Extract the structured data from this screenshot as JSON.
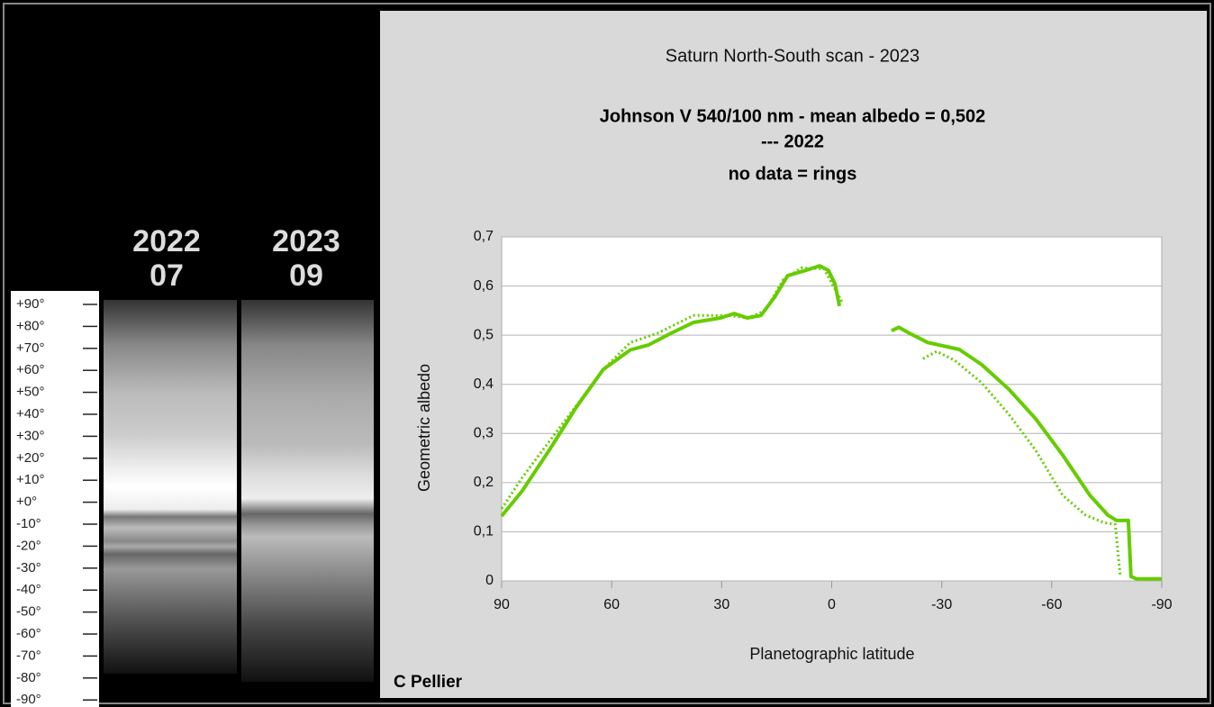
{
  "left_panel": {
    "strip_labels": [
      [
        "2022",
        "07"
      ],
      [
        "2023",
        "09"
      ]
    ],
    "scale": [
      "+90°",
      "+80°",
      "+70°",
      "+60°",
      "+50°",
      "+40°",
      "+30°",
      "+20°",
      "+10°",
      "+0°",
      "-10°",
      "-20°",
      "-30°",
      "-40°",
      "-50°",
      "-60°",
      "-70°",
      "-80°",
      "-90°"
    ]
  },
  "chart_data": {
    "type": "line",
    "title": "Saturn North-South scan - 2023",
    "subtitle": [
      "Johnson V 540/100 nm - mean albedo = 0,502",
      "--- 2022",
      "no data = rings"
    ],
    "xlabel": "Planetographic latitude",
    "ylabel": "Geometric albedo",
    "credit": "C Pellier",
    "xlim": [
      90,
      -90
    ],
    "xticks": [
      90,
      60,
      30,
      0,
      -30,
      -60,
      -90
    ],
    "ylim": [
      0,
      0.7
    ],
    "yticks": [
      0,
      {
        "value": 0.1,
        "label": "0,1"
      },
      {
        "value": 0.2,
        "label": "0,2"
      },
      {
        "value": 0.3,
        "label": "0,3"
      },
      {
        "value": 0.4,
        "label": "0,4"
      },
      {
        "value": 0.5,
        "label": "0,5"
      },
      {
        "value": 0.6,
        "label": "0,6"
      },
      {
        "value": 0.7,
        "label": "0,7"
      }
    ],
    "grid": true,
    "series": [
      {
        "color": "#66cc00",
        "style": "solid",
        "x": [
          90,
          84.4,
          77,
          69.6,
          62.3,
          54.9,
          50,
          43.8,
          37.7,
          30.3,
          26.6,
          23,
          19.3,
          15.6,
          12,
          7,
          3.3,
          0.9,
          -0.9,
          -2.1,
          null,
          -16.3,
          -18.3,
          -21.2,
          -26.2,
          -34.8,
          -40.9,
          -48.3,
          -55.6,
          -63,
          -70.4,
          -75.3,
          -77.7,
          -80.9,
          -81.6,
          -83.1,
          -90
        ],
        "values": [
          0.132,
          0.183,
          0.266,
          0.354,
          0.43,
          0.47,
          0.48,
          0.504,
          0.526,
          0.535,
          0.544,
          0.535,
          0.54,
          0.577,
          0.621,
          0.632,
          0.641,
          0.632,
          0.604,
          0.559,
          null,
          0.509,
          0.516,
          0.504,
          0.485,
          0.471,
          0.44,
          0.39,
          0.33,
          0.256,
          0.174,
          0.134,
          0.123,
          0.123,
          0.009,
          0.004,
          0.004
        ]
      },
      {
        "color": "#66cc00",
        "style": "dotted",
        "x": [
          90,
          84.4,
          77,
          69.6,
          62.3,
          54.9,
          47.5,
          37.7,
          27.9,
          23,
          18.1,
          13.2,
          8.2,
          2.1,
          -2.8,
          null,
          -24.9,
          -28.6,
          -33.5,
          -40.9,
          -48.3,
          -55.6,
          -63,
          -69.2,
          -74.1,
          -77.3,
          -78.7
        ],
        "values": [
          0.147,
          0.21,
          0.284,
          0.357,
          0.43,
          0.485,
          0.504,
          0.54,
          0.54,
          0.535,
          0.55,
          0.613,
          0.637,
          0.635,
          0.568,
          null,
          0.452,
          0.467,
          0.449,
          0.403,
          0.339,
          0.266,
          0.174,
          0.134,
          0.119,
          0.115,
          0.009
        ]
      }
    ]
  }
}
